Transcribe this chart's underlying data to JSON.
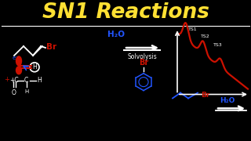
{
  "title": "SN1 Reactions",
  "title_color": "#FFE033",
  "bg_color": "#000000",
  "white": "#FFFFFF",
  "red": "#CC1100",
  "blue": "#2255FF",
  "dark_blue": "#1133CC",
  "text_solvolysis": "Solvolysis",
  "ts_labels": [
    "TS1",
    "TS2",
    "TS3"
  ]
}
